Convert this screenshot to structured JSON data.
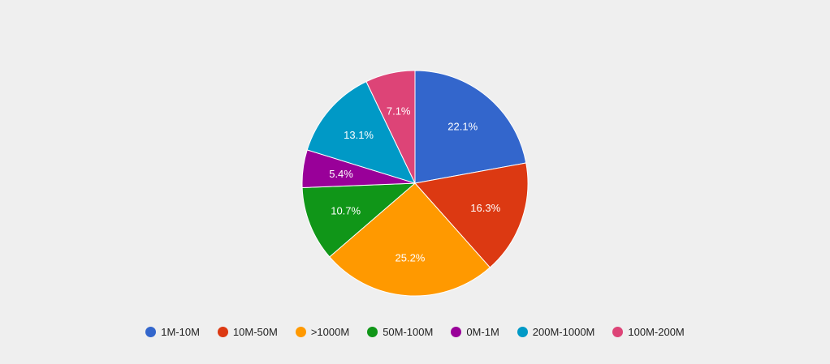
{
  "chart_data": {
    "type": "pie",
    "categories": [
      "1M-10M",
      "10M-50M",
      ">1000M",
      "50M-100M",
      "0M-1M",
      "200M-1000M",
      "100M-200M"
    ],
    "values": [
      22.1,
      16.3,
      25.2,
      10.7,
      5.4,
      13.1,
      7.1
    ],
    "labels": [
      "22.1%",
      "16.3%",
      "25.2%",
      "10.7%",
      "5.4%",
      "13.1%",
      "7.1%"
    ],
    "colors": [
      "#3366cc",
      "#dc3912",
      "#ff9900",
      "#109618",
      "#990099",
      "#0099c6",
      "#dd4477"
    ],
    "legend": "bottom"
  }
}
